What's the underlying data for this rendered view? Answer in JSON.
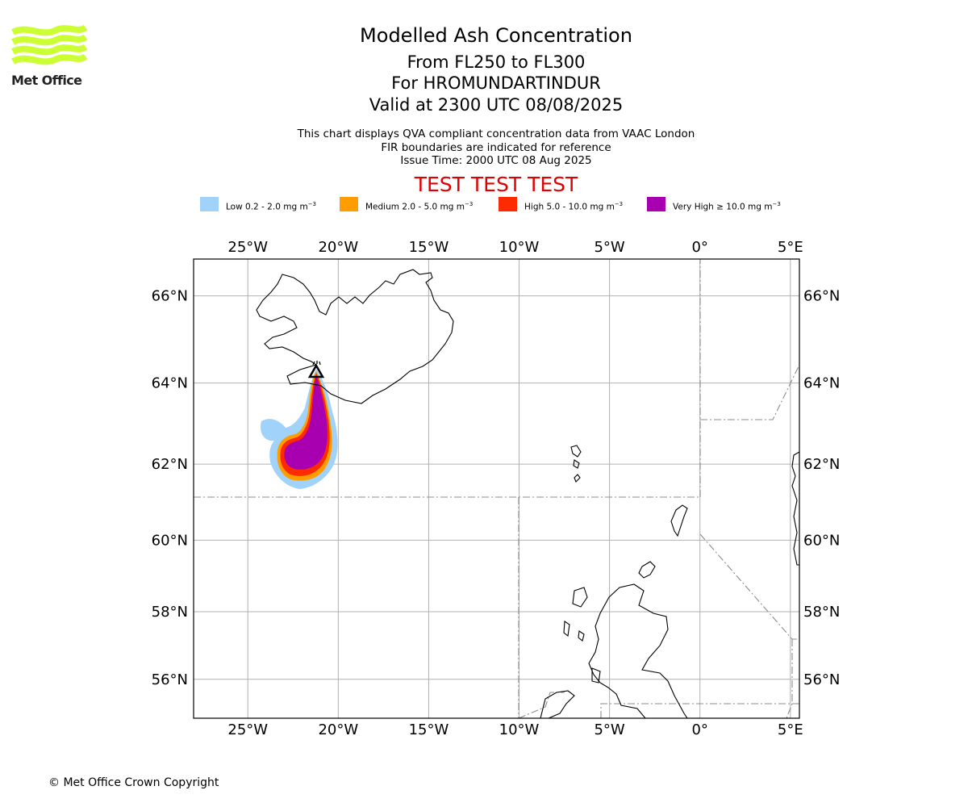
{
  "logo": {
    "text": "Met Office",
    "mark_color": "#ccff33",
    "text_color": "#222222"
  },
  "header": {
    "title": "Modelled Ash Concentration",
    "level_range": "From FL250 to FL300",
    "volcano_line": "For HROMUNDARTINDUR",
    "valid_time": "Valid at 2300 UTC 08/08/2025",
    "info_line_1": "This chart displays QVA compliant concentration data from VAAC London",
    "info_line_2": "FIR boundaries are indicated for reference",
    "issue_time": "Issue Time: 2000 UTC 08 Aug 2025",
    "test_banner": "TEST TEST TEST",
    "test_banner_color": "#e00000"
  },
  "legend": {
    "items": [
      {
        "label": "Low 0.2 - 2.0 mg m",
        "unit_exponent": "−3",
        "color": "#a0d2fa"
      },
      {
        "label": "Medium 2.0 - 5.0 mg m",
        "unit_exponent": "−3",
        "color": "#ff9c00"
      },
      {
        "label": "High 5.0 - 10.0 mg m",
        "unit_exponent": "−3",
        "color": "#ff2b00"
      },
      {
        "label": "Very High  ≥  10.0 mg m",
        "unit_exponent": "−3",
        "color": "#a800b0"
      }
    ]
  },
  "map": {
    "lon_range": [
      -28,
      5.5
    ],
    "lat_range": [
      54.8,
      66.8
    ],
    "projection": "mercator",
    "grid": true,
    "lon_ticks": [
      {
        "value": -25,
        "label": "25°W"
      },
      {
        "value": -20,
        "label": "20°W"
      },
      {
        "value": -15,
        "label": "15°W"
      },
      {
        "value": -10,
        "label": "10°W"
      },
      {
        "value": -5,
        "label": "5°W"
      },
      {
        "value": 0,
        "label": "0°"
      },
      {
        "value": 5,
        "label": "5°E"
      }
    ],
    "lat_ticks": [
      {
        "value": 56,
        "label": "56°N"
      },
      {
        "value": 58,
        "label": "58°N"
      },
      {
        "value": 60,
        "label": "60°N"
      },
      {
        "value": 62,
        "label": "62°N"
      },
      {
        "value": 64,
        "label": "64°N"
      },
      {
        "value": 66,
        "label": "66°N"
      }
    ],
    "volcano": {
      "name": "HROMUNDARTINDUR",
      "lon": -21.2,
      "lat": 64.15,
      "icon": "volcano-triangle-icon"
    },
    "grid_color": "#b0b0b0",
    "fir_color": "#8c8c8c"
  },
  "footer": {
    "copyright": "© Met Office Crown Copyright"
  }
}
